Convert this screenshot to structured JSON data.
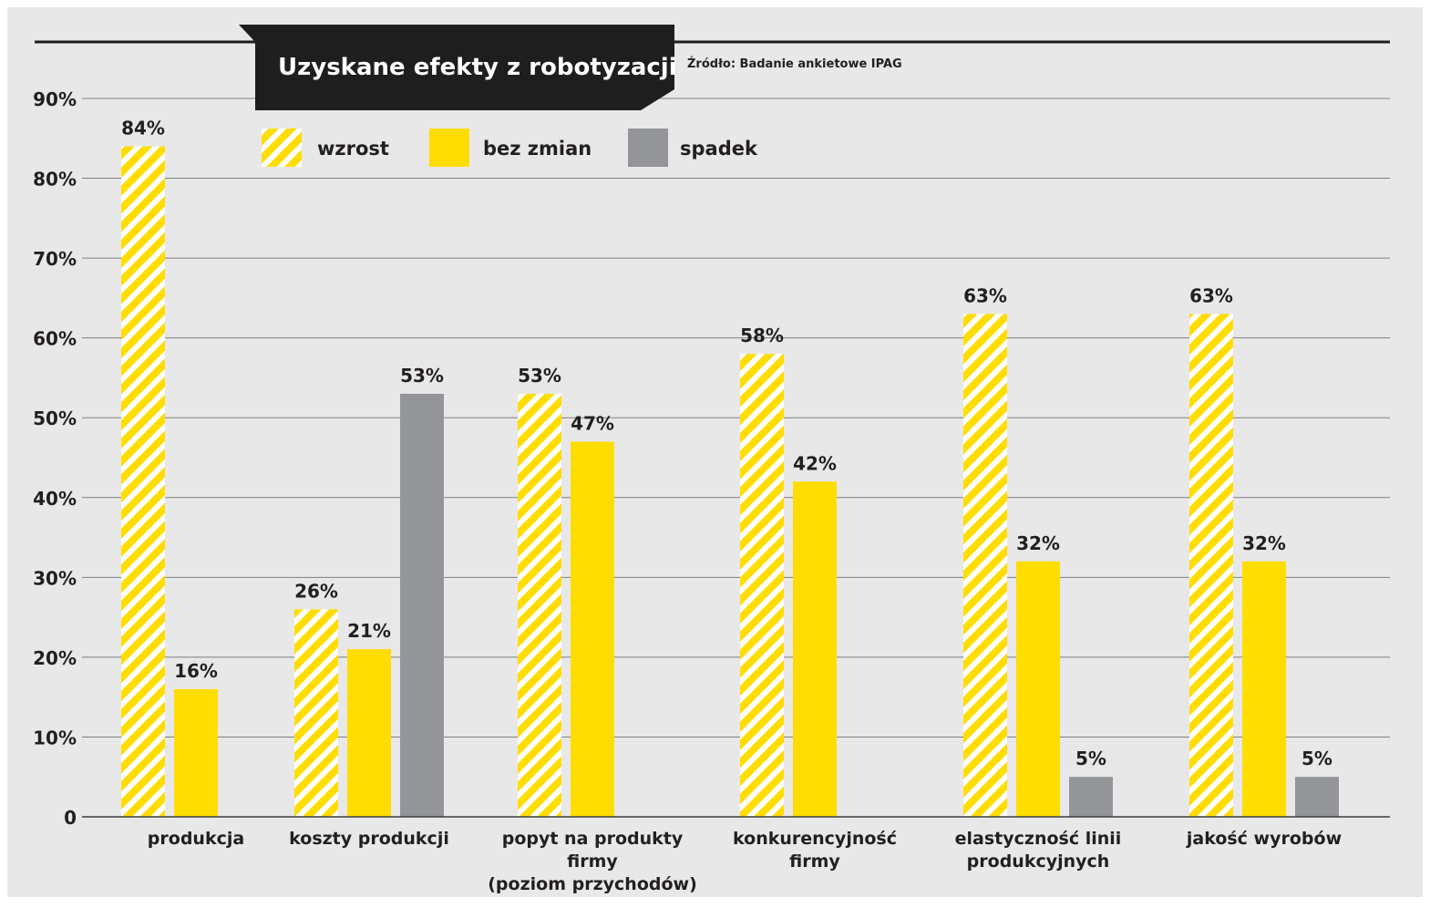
{
  "chart_data": {
    "type": "bar",
    "title": "Uzyskane efekty z robotyzacji",
    "source": "Źródło: Badanie ankietowe IPAG",
    "ylim": [
      0,
      90
    ],
    "yticks": [
      {
        "value": 0,
        "label": "0"
      },
      {
        "value": 10,
        "label": "10%"
      },
      {
        "value": 20,
        "label": "20%"
      },
      {
        "value": 30,
        "label": "30%"
      },
      {
        "value": 40,
        "label": "40%"
      },
      {
        "value": 50,
        "label": "50%"
      },
      {
        "value": 60,
        "label": "60%"
      },
      {
        "value": 70,
        "label": "70%"
      },
      {
        "value": 80,
        "label": "80%"
      },
      {
        "value": 90,
        "label": "90%"
      }
    ],
    "grid": true,
    "legend_position": "top-left",
    "categories": [
      [
        "produkcja"
      ],
      [
        "koszty produkcji"
      ],
      [
        "popyt na produkty",
        "firmy",
        "(poziom przychodów)"
      ],
      [
        "konkurencyjność",
        "firmy"
      ],
      [
        "elastyczność linii",
        "produkcyjnych"
      ],
      [
        "jakość wyrobów"
      ]
    ],
    "series": [
      {
        "name": "wzrost",
        "style": "hatched",
        "color": "#ffdd00",
        "values": [
          84,
          26,
          53,
          58,
          63,
          63
        ],
        "labels": [
          "84%",
          "26%",
          "53%",
          "58%",
          "63%",
          "63%"
        ]
      },
      {
        "name": "bez zmian",
        "style": "solid",
        "color": "#ffdd00",
        "values": [
          16,
          21,
          47,
          42,
          32,
          32
        ],
        "labels": [
          "16%",
          "21%",
          "47%",
          "42%",
          "32%",
          "32%"
        ]
      },
      {
        "name": "spadek",
        "style": "solid",
        "color": "#939598",
        "values": [
          null,
          53,
          null,
          null,
          5,
          5
        ],
        "labels": [
          null,
          "53%",
          null,
          null,
          "5%",
          "5%"
        ]
      }
    ]
  },
  "colors": {
    "background": "#e8e8e8",
    "grid": "#7f7f7f",
    "title_bar": "#1e1e1e",
    "text": "#231f20",
    "hatch_stripe": "#ffdd00",
    "hatch_gap": "#ffffff"
  }
}
